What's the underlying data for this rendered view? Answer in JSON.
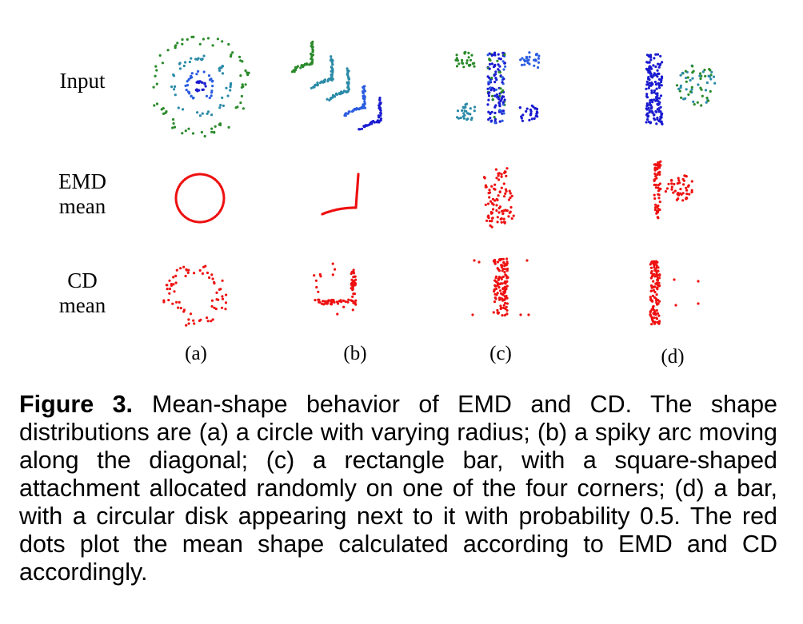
{
  "row_labels": [
    "Input",
    "EMD\nmean",
    "CD\nmean"
  ],
  "col_labels": [
    "(a)",
    "(b)",
    "(c)",
    "(d)"
  ],
  "caption": {
    "figure_number": "Figure 3.",
    "text": "Mean-shape behavior of EMD and CD. The shape distributions are (a) a circle with varying radius; (b) a spiky arc moving along the diagonal; (c) a rectangle bar, with a square-shaped attachment allocated randomly on one of the four corners; (d) a bar, with a circular disk appearing next to it with probability 0.5. The red dots plot the mean shape calculated according to EMD and CD accordingly."
  },
  "colors": {
    "mean_points": "#ee1111",
    "input_palette": [
      "#2a8a2a",
      "#2a8aa8",
      "#2a5ce0",
      "#1a1ad0"
    ]
  },
  "panels": [
    {
      "row": "input",
      "col": "a",
      "shape": "concentric rings of varying radius",
      "colors": [
        "#1a1ad0",
        "#2a5ce0",
        "#2a8aa8",
        "#2a8a2a"
      ]
    },
    {
      "row": "input",
      "col": "b",
      "shape": "spiky arcs along the diagonal",
      "colors": [
        "#2a8a2a",
        "#2a8aa8",
        "#2a8aa8",
        "#2a5ce0",
        "#1a1ad0"
      ]
    },
    {
      "row": "input",
      "col": "c",
      "shape": "vertical bar with square attachments at the four corners",
      "colors": [
        "#2a8a2a",
        "#2a5ce0",
        "#2a8aa8",
        "#1a1ad0"
      ]
    },
    {
      "row": "input",
      "col": "d",
      "shape": "vertical bar with optional circular disk",
      "colors": [
        "#1a1ad0",
        "#2a8aa8",
        "#2a8a2a"
      ]
    },
    {
      "row": "emd",
      "col": "a",
      "shape": "single circle"
    },
    {
      "row": "emd",
      "col": "b",
      "shape": "single spiky arc"
    },
    {
      "row": "emd",
      "col": "c",
      "shape": "blob at bar center"
    },
    {
      "row": "emd",
      "col": "d",
      "shape": "bar with half-density disk"
    },
    {
      "row": "cd",
      "col": "a",
      "shape": "noisy ring"
    },
    {
      "row": "cd",
      "col": "b",
      "shape": "noisy arc"
    },
    {
      "row": "cd",
      "col": "c",
      "shape": "bar with scattered corner points"
    },
    {
      "row": "cd",
      "col": "d",
      "shape": "bar with sparse points to the right"
    }
  ]
}
